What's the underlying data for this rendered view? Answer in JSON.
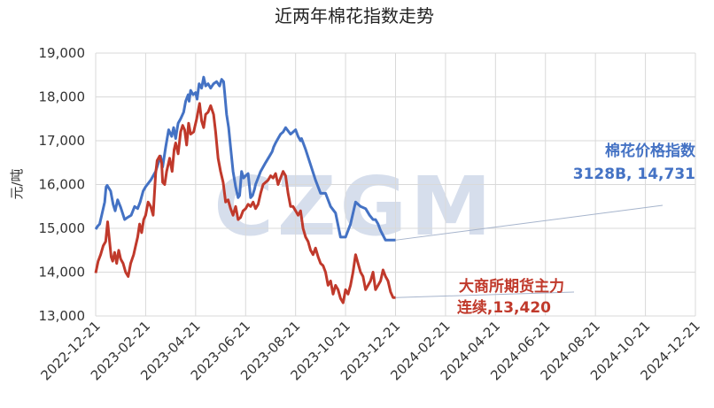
{
  "chart_data": {
    "type": "line",
    "title": "近两年棉花指数走势",
    "ylabel": "元/吨",
    "xlabel": "",
    "watermark": "CZGM",
    "ylim": [
      13000,
      19000
    ],
    "yticks": [
      "13,000",
      "14,000",
      "15,000",
      "16,000",
      "17,000",
      "18,000",
      "19,000"
    ],
    "xticks": [
      "2022-12-21",
      "2023-02-21",
      "2023-04-21",
      "2023-06-21",
      "2023-08-21",
      "2023-10-21",
      "2023-12-21",
      "2024-02-21",
      "2024-04-21",
      "2024-06-21",
      "2024-08-21",
      "2024-10-21",
      "2024-12-21"
    ],
    "grid": true,
    "colors": {
      "index": "#4472c4",
      "futures": "#c0392b",
      "grid": "#d9d9d9",
      "watermark": "#c9d3e6"
    },
    "series": [
      {
        "name": "棉花价格指数",
        "annotation": [
          "棉花价格指数",
          "3128B, 14,731"
        ],
        "x": [
          0,
          0.04,
          0.08,
          0.12,
          0.18,
          0.2,
          0.21,
          0.23,
          0.3,
          0.35,
          0.39,
          0.44,
          0.5,
          0.58,
          0.64,
          0.71,
          0.78,
          0.84,
          0.89,
          0.95,
          1.0,
          1.1,
          1.2,
          1.3,
          1.34,
          1.4,
          1.46,
          1.52,
          1.56,
          1.6,
          1.62,
          1.65,
          1.7,
          1.76,
          1.8,
          1.85,
          1.87,
          1.9,
          1.95,
          2.0,
          2.03,
          2.07,
          2.12,
          2.16,
          2.2,
          2.25,
          2.3,
          2.36,
          2.42,
          2.48,
          2.52,
          2.56,
          2.58,
          2.62,
          2.66,
          2.7,
          2.75,
          2.8,
          2.85,
          2.88,
          2.92,
          2.96,
          3.0,
          3.05,
          3.1,
          3.14,
          3.18,
          3.2,
          3.3,
          3.4,
          3.48,
          3.53,
          3.56,
          3.6,
          3.65,
          3.7,
          3.75,
          3.8,
          3.9,
          4.0,
          4.05,
          4.1,
          4.12,
          4.2,
          4.3,
          4.4,
          4.5,
          4.6,
          4.7,
          4.8,
          4.9,
          5.0,
          5.1,
          5.2,
          5.3,
          5.4,
          5.48,
          5.55,
          5.6,
          5.65,
          5.7,
          5.8,
          5.9,
          6.0
        ],
        "y": [
          14980,
          15050,
          15100,
          15300,
          15600,
          15850,
          15950,
          15980,
          15850,
          15550,
          15400,
          15650,
          15480,
          15200,
          15250,
          15300,
          15500,
          15450,
          15600,
          15850,
          15950,
          16100,
          16300,
          16650,
          16400,
          16850,
          17250,
          17100,
          17300,
          17050,
          17200,
          17400,
          17500,
          17650,
          17900,
          18050,
          17900,
          18150,
          18050,
          18100,
          17950,
          18300,
          18200,
          18450,
          18250,
          18300,
          18200,
          18300,
          18350,
          18250,
          18400,
          18350,
          18100,
          17600,
          17300,
          16850,
          16300,
          15950,
          15700,
          15750,
          16300,
          16150,
          16200,
          16250,
          15700,
          15750,
          15900,
          16000,
          16300,
          16500,
          16650,
          16750,
          16850,
          16950,
          17050,
          17150,
          17200,
          17300,
          17150,
          17250,
          17100,
          17000,
          17050,
          16800,
          16450,
          16100,
          15800,
          15800,
          15500,
          15350,
          14800,
          14800,
          15100,
          15600,
          15500,
          15450,
          15300,
          15200,
          15200,
          15100,
          14950,
          14731,
          14731,
          14731
        ]
      },
      {
        "name": "大商所期货主力连续",
        "annotation": [
          "大商所期货主力",
          "连续,13,420"
        ],
        "x": [
          0,
          0.05,
          0.1,
          0.15,
          0.2,
          0.24,
          0.27,
          0.31,
          0.34,
          0.38,
          0.42,
          0.46,
          0.5,
          0.55,
          0.6,
          0.65,
          0.7,
          0.76,
          0.8,
          0.84,
          0.88,
          0.92,
          0.96,
          1.0,
          1.05,
          1.1,
          1.15,
          1.2,
          1.23,
          1.28,
          1.32,
          1.34,
          1.38,
          1.42,
          1.48,
          1.53,
          1.57,
          1.6,
          1.65,
          1.7,
          1.74,
          1.78,
          1.82,
          1.86,
          1.9,
          1.96,
          2.02,
          2.08,
          2.12,
          2.16,
          2.2,
          2.25,
          2.3,
          2.36,
          2.4,
          2.45,
          2.5,
          2.55,
          2.6,
          2.65,
          2.7,
          2.75,
          2.8,
          2.85,
          2.9,
          2.95,
          3.0,
          3.05,
          3.1,
          3.15,
          3.2,
          3.25,
          3.3,
          3.35,
          3.4,
          3.45,
          3.5,
          3.55,
          3.6,
          3.65,
          3.7,
          3.75,
          3.8,
          3.85,
          3.9,
          3.95,
          4.0,
          4.05,
          4.1,
          4.15,
          4.2,
          4.25,
          4.3,
          4.35,
          4.4,
          4.45,
          4.5,
          4.55,
          4.6,
          4.65,
          4.7,
          4.75,
          4.8,
          4.85,
          4.9,
          4.95,
          5.0,
          5.05,
          5.1,
          5.15,
          5.2,
          5.25,
          5.3,
          5.35,
          5.4,
          5.45,
          5.5,
          5.55,
          5.6,
          5.65,
          5.7,
          5.75,
          5.8,
          5.85,
          5.9,
          5.95,
          6.0
        ],
        "y": [
          13980,
          14250,
          14400,
          14600,
          14700,
          15150,
          14800,
          14350,
          14250,
          14450,
          14200,
          14500,
          14300,
          14200,
          14000,
          13900,
          14200,
          14400,
          14600,
          14800,
          15100,
          14900,
          15200,
          15300,
          15600,
          15500,
          15300,
          16250,
          16550,
          16650,
          16500,
          16050,
          16000,
          16300,
          16600,
          16300,
          16800,
          16950,
          16700,
          17200,
          17350,
          17250,
          16900,
          17400,
          17150,
          17200,
          17500,
          17850,
          17450,
          17300,
          17600,
          17650,
          17800,
          17600,
          17200,
          16600,
          16300,
          16050,
          15600,
          15650,
          15450,
          15300,
          15500,
          15200,
          15250,
          15400,
          15450,
          15550,
          15500,
          15600,
          15450,
          15550,
          15800,
          16000,
          16050,
          16100,
          16200,
          16150,
          16250,
          16000,
          16150,
          16300,
          16200,
          15800,
          15500,
          15500,
          15400,
          15300,
          15400,
          15000,
          14800,
          14700,
          14500,
          14400,
          14550,
          14350,
          14200,
          14150,
          14000,
          13700,
          13800,
          13500,
          13700,
          13600,
          13400,
          13300,
          13600,
          13500,
          13700,
          14000,
          14400,
          14200,
          14000,
          13900,
          13600,
          13700,
          13800,
          14000,
          13600,
          13700,
          13800,
          14050,
          13900,
          13800,
          13550,
          13420,
          13420
        ]
      }
    ]
  }
}
